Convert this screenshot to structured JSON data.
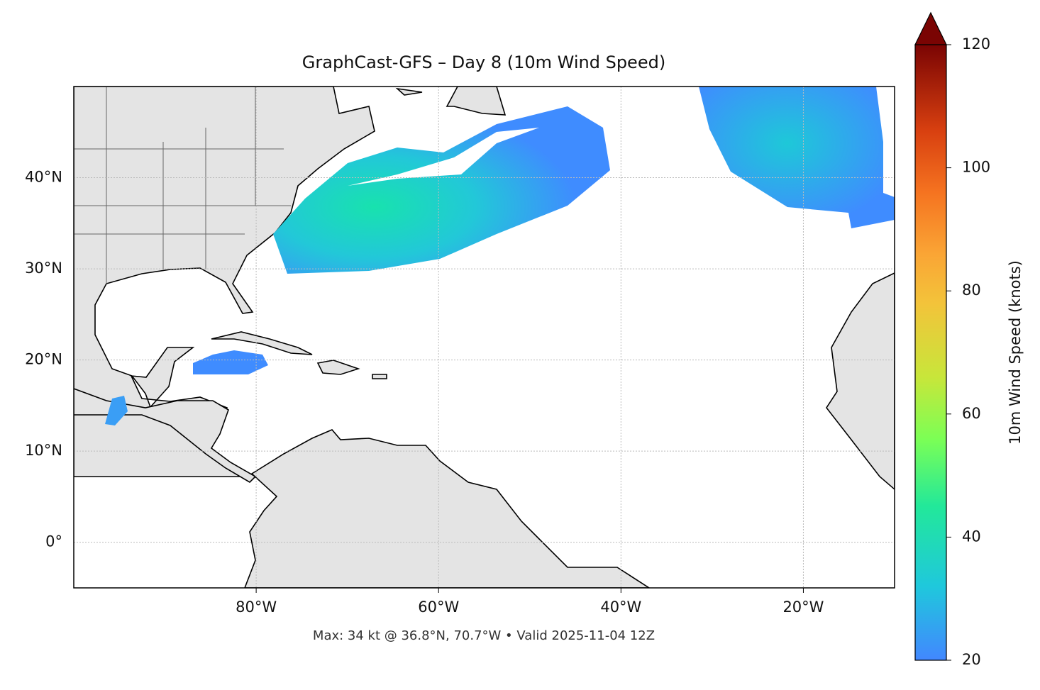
{
  "chart_data": {
    "type": "map",
    "title": "GraphCast-GFS – Day 8 (10m Wind Speed)",
    "annotation": "Max: 34 kt @ 36.8°N, 70.7°W • Valid 2025-11-04 12Z",
    "xlim": [
      -100,
      -10
    ],
    "ylim": [
      -5,
      50
    ],
    "xticks": [
      {
        "value": -80,
        "label": "80°W"
      },
      {
        "value": -60,
        "label": "60°W"
      },
      {
        "value": -40,
        "label": "40°W"
      },
      {
        "value": -20,
        "label": "20°W"
      }
    ],
    "yticks": [
      {
        "value": 0,
        "label": "0°"
      },
      {
        "value": 10,
        "label": "10°N"
      },
      {
        "value": 20,
        "label": "20°N"
      },
      {
        "value": 30,
        "label": "30°N"
      },
      {
        "value": 40,
        "label": "40°N"
      }
    ],
    "grid": true,
    "colorbar": {
      "label": "10m Wind Speed (knots)",
      "lim": [
        20,
        120
      ],
      "ticks": [
        20,
        40,
        60,
        80,
        100,
        120
      ],
      "extend": "max"
    }
  }
}
